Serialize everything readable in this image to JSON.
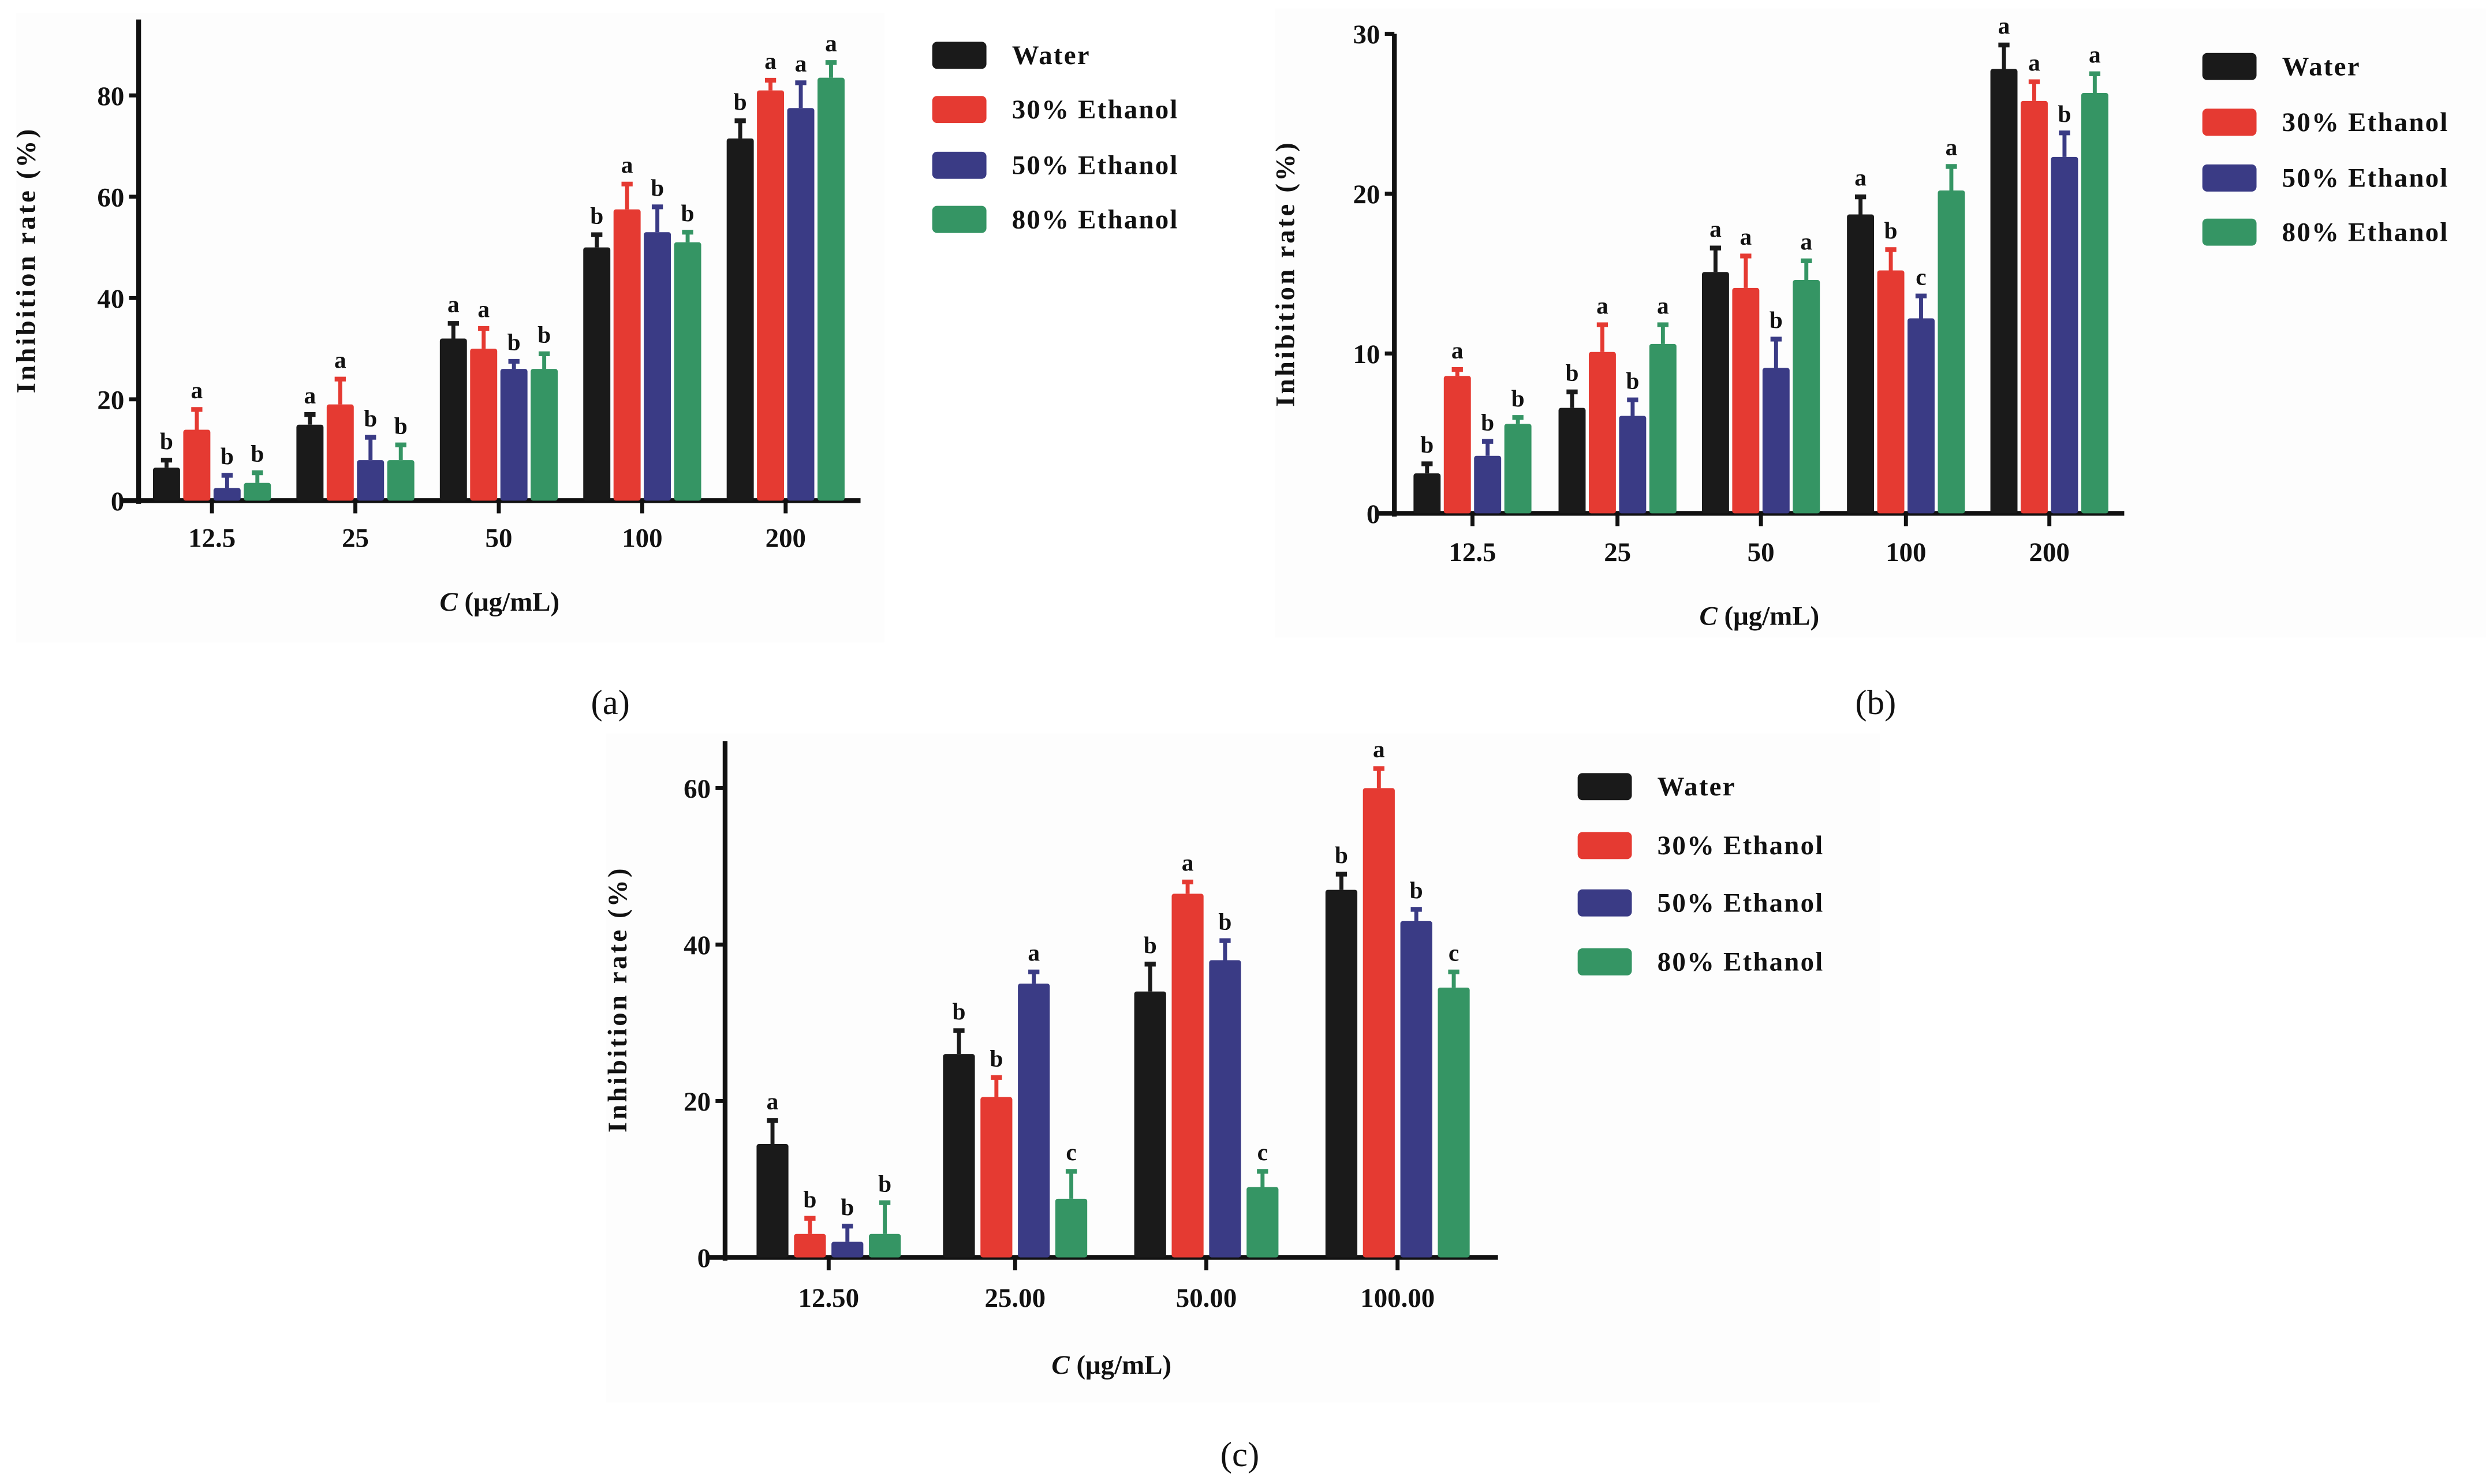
{
  "colors": {
    "Water": "#1a1a1a",
    "30% Ethanol": "#e53a32",
    "50% Ethanol": "#3a3b85",
    "80% Ethanol": "#359564"
  },
  "chart_data": [
    {
      "type": "bar",
      "panel": "(a)",
      "categories": [
        "12.5",
        "25",
        "50",
        "100",
        "200"
      ],
      "xlabel_italic": "C",
      "xlabel": "(μg/mL)",
      "ylabel": "Inhibition rate (%)",
      "ylim": [
        0,
        95
      ],
      "yticks": [
        0,
        20,
        40,
        60,
        80
      ],
      "legend": "right",
      "series": [
        {
          "name": "Water",
          "values": [
            6.5,
            15,
            32,
            50,
            71.5
          ],
          "errors": [
            1.5,
            2,
            3,
            2.5,
            3.5
          ],
          "letters": [
            "b",
            "a",
            "a",
            "b",
            "b"
          ]
        },
        {
          "name": "30% Ethanol",
          "values": [
            14,
            19,
            30,
            57.5,
            81
          ],
          "errors": [
            4,
            5,
            4,
            5,
            2
          ],
          "letters": [
            "a",
            "a",
            "a",
            "a",
            "a"
          ]
        },
        {
          "name": "50% Ethanol",
          "values": [
            2.5,
            8,
            26,
            53,
            77.5
          ],
          "errors": [
            2.5,
            4.5,
            1.5,
            5,
            5
          ],
          "letters": [
            "b",
            "b",
            "b",
            "b",
            "a"
          ]
        },
        {
          "name": "80% Ethanol",
          "values": [
            3.5,
            8,
            26,
            51,
            83.5
          ],
          "errors": [
            2,
            3,
            3,
            2,
            3
          ],
          "letters": [
            "b",
            "b",
            "b",
            "b",
            "a"
          ]
        }
      ]
    },
    {
      "type": "bar",
      "panel": "(b)",
      "categories": [
        "12.5",
        "25",
        "50",
        "100",
        "200"
      ],
      "xlabel_italic": "C",
      "xlabel": "(μg/mL)",
      "ylabel": "Inhibition rate (%)",
      "ylim": [
        0,
        30
      ],
      "yticks": [
        0,
        10,
        20,
        30
      ],
      "legend": "right",
      "series": [
        {
          "name": "Water",
          "values": [
            2.5,
            6.6,
            15.1,
            18.7,
            27.8
          ],
          "errors": [
            0.6,
            1,
            1.5,
            1.1,
            1.5
          ],
          "letters": [
            "b",
            "b",
            "a",
            "a",
            "a"
          ]
        },
        {
          "name": "30% Ethanol",
          "values": [
            8.6,
            10.1,
            14.1,
            15.2,
            25.8
          ],
          "errors": [
            0.4,
            1.7,
            2,
            1.3,
            1.2
          ],
          "letters": [
            "a",
            "a",
            "a",
            "b",
            "a"
          ]
        },
        {
          "name": "50% Ethanol",
          "values": [
            3.6,
            6.1,
            9.1,
            12.2,
            22.3
          ],
          "errors": [
            0.9,
            1,
            1.8,
            1.4,
            1.5
          ],
          "letters": [
            "b",
            "b",
            "b",
            "c",
            "b"
          ]
        },
        {
          "name": "80% Ethanol",
          "values": [
            5.6,
            10.6,
            14.6,
            20.2,
            26.3
          ],
          "errors": [
            0.4,
            1.2,
            1.2,
            1.5,
            1.2
          ],
          "letters": [
            "b",
            "a",
            "a",
            "a",
            "a"
          ]
        }
      ]
    },
    {
      "type": "bar",
      "panel": "(c)",
      "categories": [
        "12.50",
        "25.00",
        "50.00",
        "100.00"
      ],
      "xlabel_italic": "C",
      "xlabel": "(μg/mL)",
      "ylabel": "Inhibition rate (%)",
      "ylim": [
        0,
        66
      ],
      "yticks": [
        0,
        20,
        40,
        60
      ],
      "legend": "right",
      "series": [
        {
          "name": "Water",
          "values": [
            14.5,
            26,
            34,
            47
          ],
          "errors": [
            3,
            3,
            3.5,
            2
          ],
          "letters": [
            "a",
            "b",
            "b",
            "b"
          ]
        },
        {
          "name": "30% Ethanol",
          "values": [
            3,
            20.5,
            46.5,
            60
          ],
          "errors": [
            2,
            2.5,
            1.5,
            2.5
          ],
          "letters": [
            "b",
            "b",
            "a",
            "a"
          ]
        },
        {
          "name": "50% Ethanol",
          "values": [
            2,
            35,
            38,
            43
          ],
          "errors": [
            2,
            1.5,
            2.5,
            1.5
          ],
          "letters": [
            "b",
            "a",
            "b",
            "b"
          ]
        },
        {
          "name": "80% Ethanol",
          "values": [
            3,
            7.5,
            9,
            34.5
          ],
          "errors": [
            4,
            3.5,
            2,
            2
          ],
          "letters": [
            "b",
            "c",
            "c",
            "c"
          ]
        }
      ]
    }
  ]
}
